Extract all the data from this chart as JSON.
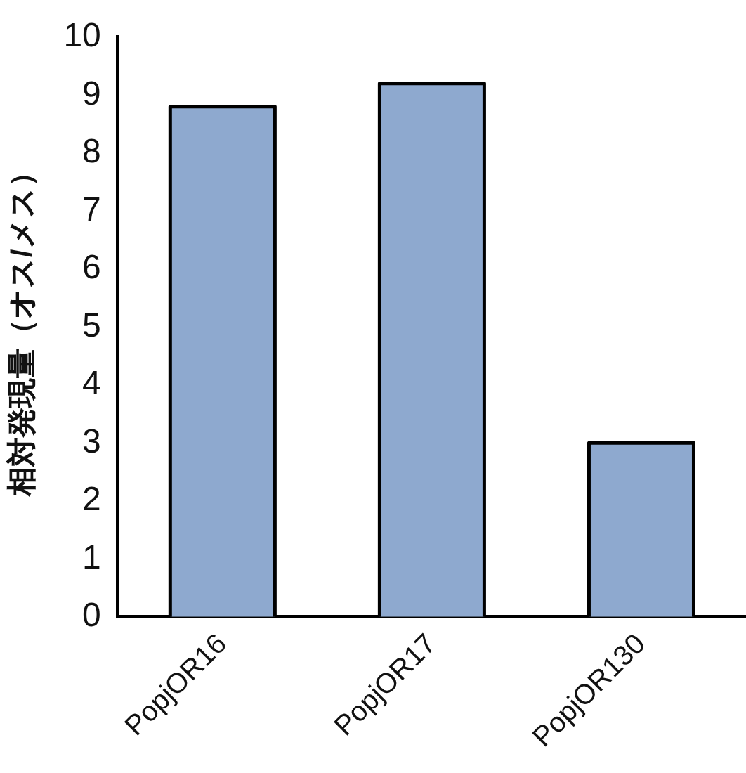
{
  "chart_data": {
    "type": "bar",
    "ylabel": "相対発現量（オス/メス）",
    "categories": [
      "PopjOR16",
      "PopjOR17",
      "PopjOR130"
    ],
    "values": [
      8.8,
      9.2,
      3.0
    ],
    "color": "#8ea9cf",
    "ylim": [
      0,
      10
    ],
    "yticks": [
      0,
      1,
      2,
      3,
      4,
      5,
      6,
      7,
      8,
      9,
      10
    ],
    "grid": false,
    "legend": false
  }
}
